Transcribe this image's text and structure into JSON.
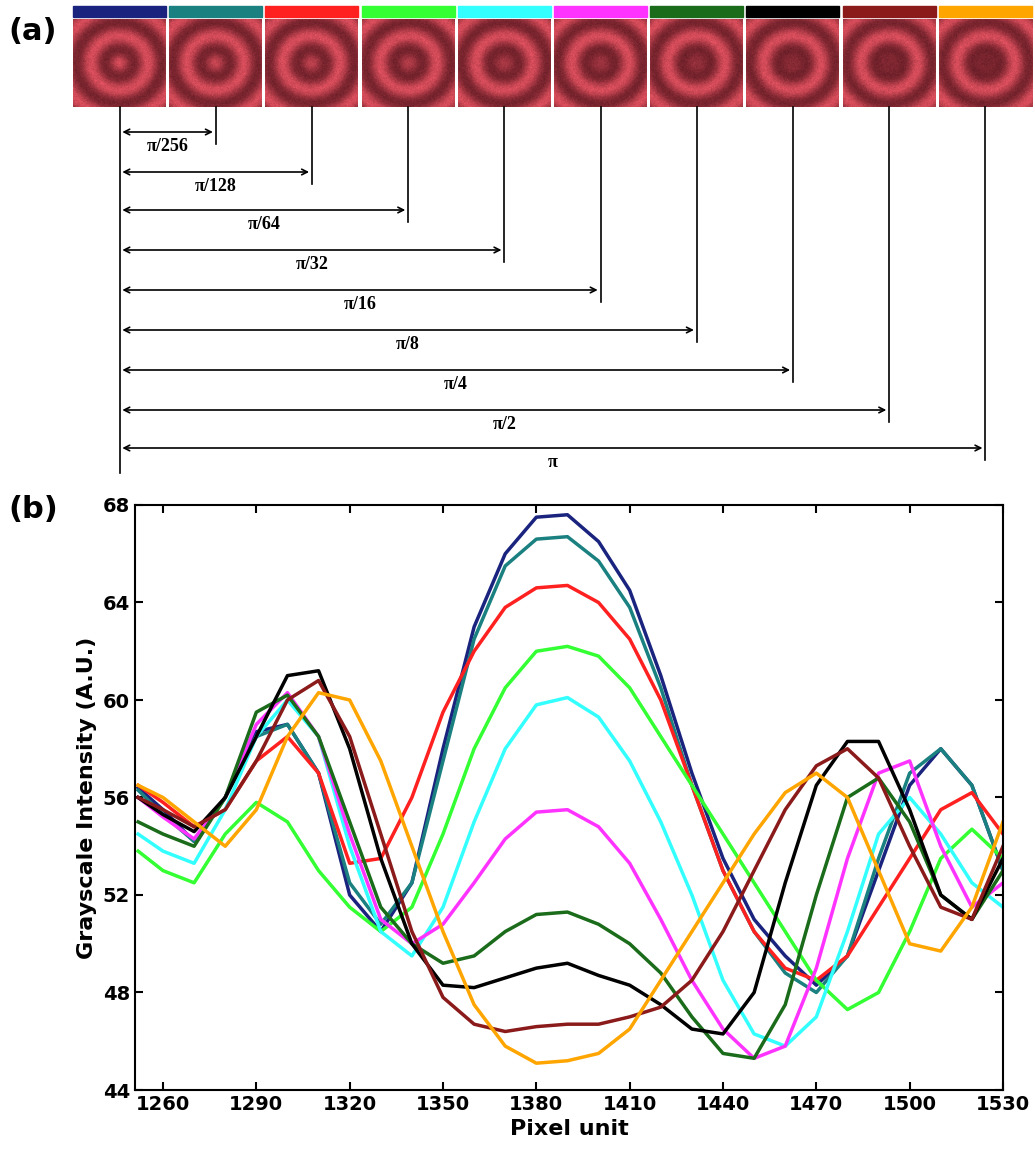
{
  "panel_a": {
    "label": "(a)",
    "phase_labels": [
      "π/256",
      "π/128",
      "π/64",
      "π/32",
      "π/16",
      "π/8",
      "π/4",
      "π/2",
      "π"
    ]
  },
  "chart_data": {
    "type": "line",
    "panel_label": "(b)",
    "x_label": "Pixel unit",
    "y_label": "Grayscale Intensity (A.U.)",
    "x": [
      1252,
      1260,
      1270,
      1280,
      1290,
      1300,
      1310,
      1320,
      1330,
      1340,
      1350,
      1360,
      1370,
      1380,
      1390,
      1400,
      1410,
      1420,
      1430,
      1440,
      1450,
      1460,
      1470,
      1480,
      1490,
      1500,
      1510,
      1520,
      1530
    ],
    "xlim": [
      1251,
      1530
    ],
    "xticks": [
      1260,
      1290,
      1320,
      1350,
      1380,
      1410,
      1440,
      1470,
      1500,
      1530
    ],
    "ylim": [
      44,
      68
    ],
    "yticks": [
      44,
      48,
      52,
      56,
      60,
      64,
      68
    ],
    "series": [
      {
        "color": "#1a237e",
        "values": [
          56.4,
          55.5,
          54.2,
          56,
          58.7,
          59,
          57,
          52,
          50.5,
          52.5,
          58,
          63,
          66,
          67.5,
          67.6,
          66.5,
          64.5,
          61,
          57,
          53.5,
          51,
          49.5,
          48.3,
          49.5,
          53,
          56.5,
          58,
          56.5,
          53
        ]
      },
      {
        "color": "#1a8080",
        "values": [
          56.3,
          55.3,
          54.2,
          56,
          58.5,
          59,
          57,
          52.5,
          50.8,
          52.5,
          57.5,
          62.5,
          65.5,
          66.6,
          66.7,
          65.7,
          63.8,
          60.5,
          56.5,
          53,
          50.5,
          48.8,
          48,
          49.5,
          53.5,
          57,
          58,
          56.5,
          53
        ]
      },
      {
        "color": "#ff2020",
        "values": [
          56.5,
          55.8,
          54.8,
          55.5,
          57.5,
          58.5,
          57,
          53.3,
          53.5,
          56,
          59.5,
          62,
          63.8,
          64.6,
          64.7,
          64,
          62.5,
          60,
          56.5,
          53,
          50.5,
          49,
          48.5,
          49.5,
          51.5,
          53.5,
          55.5,
          56.2,
          54.5
        ]
      },
      {
        "color": "#33ff33",
        "values": [
          53.8,
          53,
          52.5,
          54.5,
          55.8,
          55,
          53,
          51.5,
          50.5,
          51.5,
          54.5,
          58,
          60.5,
          62,
          62.2,
          61.8,
          60.5,
          58.5,
          56.5,
          54.5,
          52.5,
          50.5,
          48.5,
          47.3,
          48,
          50.5,
          53.5,
          54.7,
          53.5
        ]
      },
      {
        "color": "#33ffff",
        "values": [
          54.5,
          53.8,
          53.3,
          55.5,
          58.5,
          60,
          58.5,
          54,
          50.5,
          49.5,
          51.5,
          55,
          58,
          59.8,
          60.1,
          59.3,
          57.5,
          55,
          52,
          48.5,
          46.3,
          45.8,
          47,
          50.5,
          54.5,
          56,
          54.5,
          52.5,
          51.5
        ]
      },
      {
        "color": "#ff33ff",
        "values": [
          56,
          55.2,
          54.3,
          56,
          59,
          60.3,
          58.5,
          54.5,
          51,
          50,
          50.8,
          52.5,
          54.3,
          55.4,
          55.5,
          54.8,
          53.3,
          51,
          48.5,
          46.5,
          45.3,
          45.8,
          49,
          53.5,
          57,
          57.5,
          54,
          51.5,
          52.5
        ]
      },
      {
        "color": "#1a6b1a",
        "values": [
          55,
          54.5,
          54,
          56,
          59.5,
          60.2,
          58.5,
          55,
          51.5,
          50,
          49.2,
          49.5,
          50.5,
          51.2,
          51.3,
          50.8,
          50,
          48.8,
          47,
          45.5,
          45.3,
          47.5,
          52,
          56,
          56.8,
          55,
          52,
          51,
          53
        ]
      },
      {
        "color": "#000000",
        "values": [
          56,
          55.3,
          54.6,
          56,
          58.5,
          61,
          61.2,
          58,
          53.5,
          50,
          48.3,
          48.2,
          48.6,
          49,
          49.2,
          48.7,
          48.3,
          47.5,
          46.5,
          46.3,
          48,
          52.5,
          56.5,
          58.3,
          58.3,
          55.5,
          52,
          51,
          53.5
        ]
      },
      {
        "color": "#8b1a1a",
        "values": [
          56,
          55.5,
          54.8,
          55.5,
          57.5,
          60,
          60.8,
          58.5,
          54.5,
          50.5,
          47.8,
          46.7,
          46.4,
          46.6,
          46.7,
          46.7,
          47,
          47.4,
          48.5,
          50.5,
          53,
          55.5,
          57.3,
          58,
          56.8,
          54,
          51.5,
          51,
          54
        ]
      },
      {
        "color": "#ffa500",
        "values": [
          56.5,
          56,
          55,
          54,
          55.5,
          58.5,
          60.3,
          60,
          57.5,
          54,
          50.5,
          47.5,
          45.8,
          45.1,
          45.2,
          45.5,
          46.5,
          48.5,
          50.5,
          52.5,
          54.5,
          56.2,
          57,
          56,
          53,
          50,
          49.7,
          51.5,
          55
        ]
      }
    ]
  }
}
